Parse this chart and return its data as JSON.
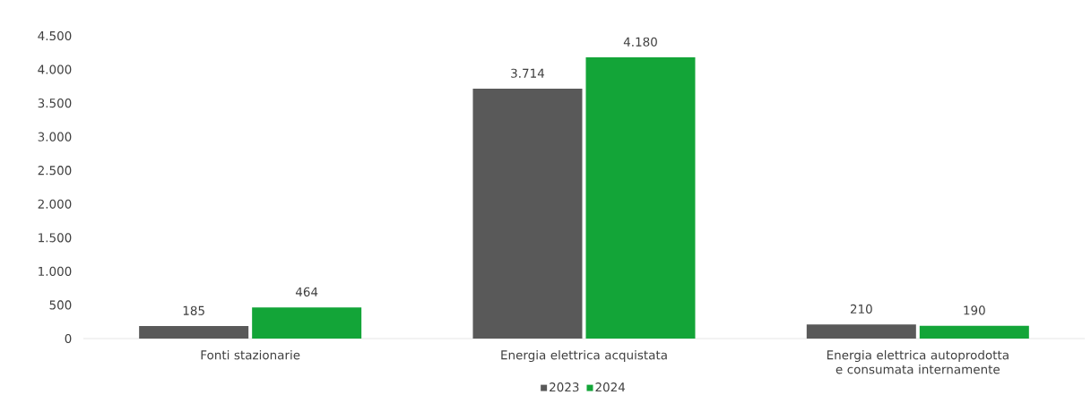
{
  "chart_data": {
    "type": "bar",
    "categories": [
      "Fonti stazionarie",
      "Energia elettrica acquistata",
      "Energia elettrica autoprodotta e consumata internamente"
    ],
    "series": [
      {
        "name": "2023",
        "color": "#595959",
        "values": [
          185,
          3714,
          210
        ],
        "value_labels": [
          "185",
          "3.714",
          "210"
        ]
      },
      {
        "name": "2024",
        "color": "#13a538",
        "values": [
          464,
          4180,
          190
        ],
        "value_labels": [
          "464",
          "4.180",
          "190"
        ]
      }
    ],
    "ylim": [
      0,
      4500
    ],
    "yticks": [
      0,
      500,
      {
        "value": 1000,
        "label": "1.000"
      },
      {
        "value": 1500,
        "label": "1.500"
      },
      {
        "value": 2000,
        "label": "2.000"
      },
      {
        "value": 2500,
        "label": "2.500"
      },
      {
        "value": 3000,
        "label": "3.000"
      },
      {
        "value": 3500,
        "label": "3.500"
      },
      {
        "value": 4000,
        "label": "4.000"
      },
      {
        "value": 4500,
        "label": "4.500"
      }
    ],
    "grid": false,
    "legend": "bottom"
  }
}
